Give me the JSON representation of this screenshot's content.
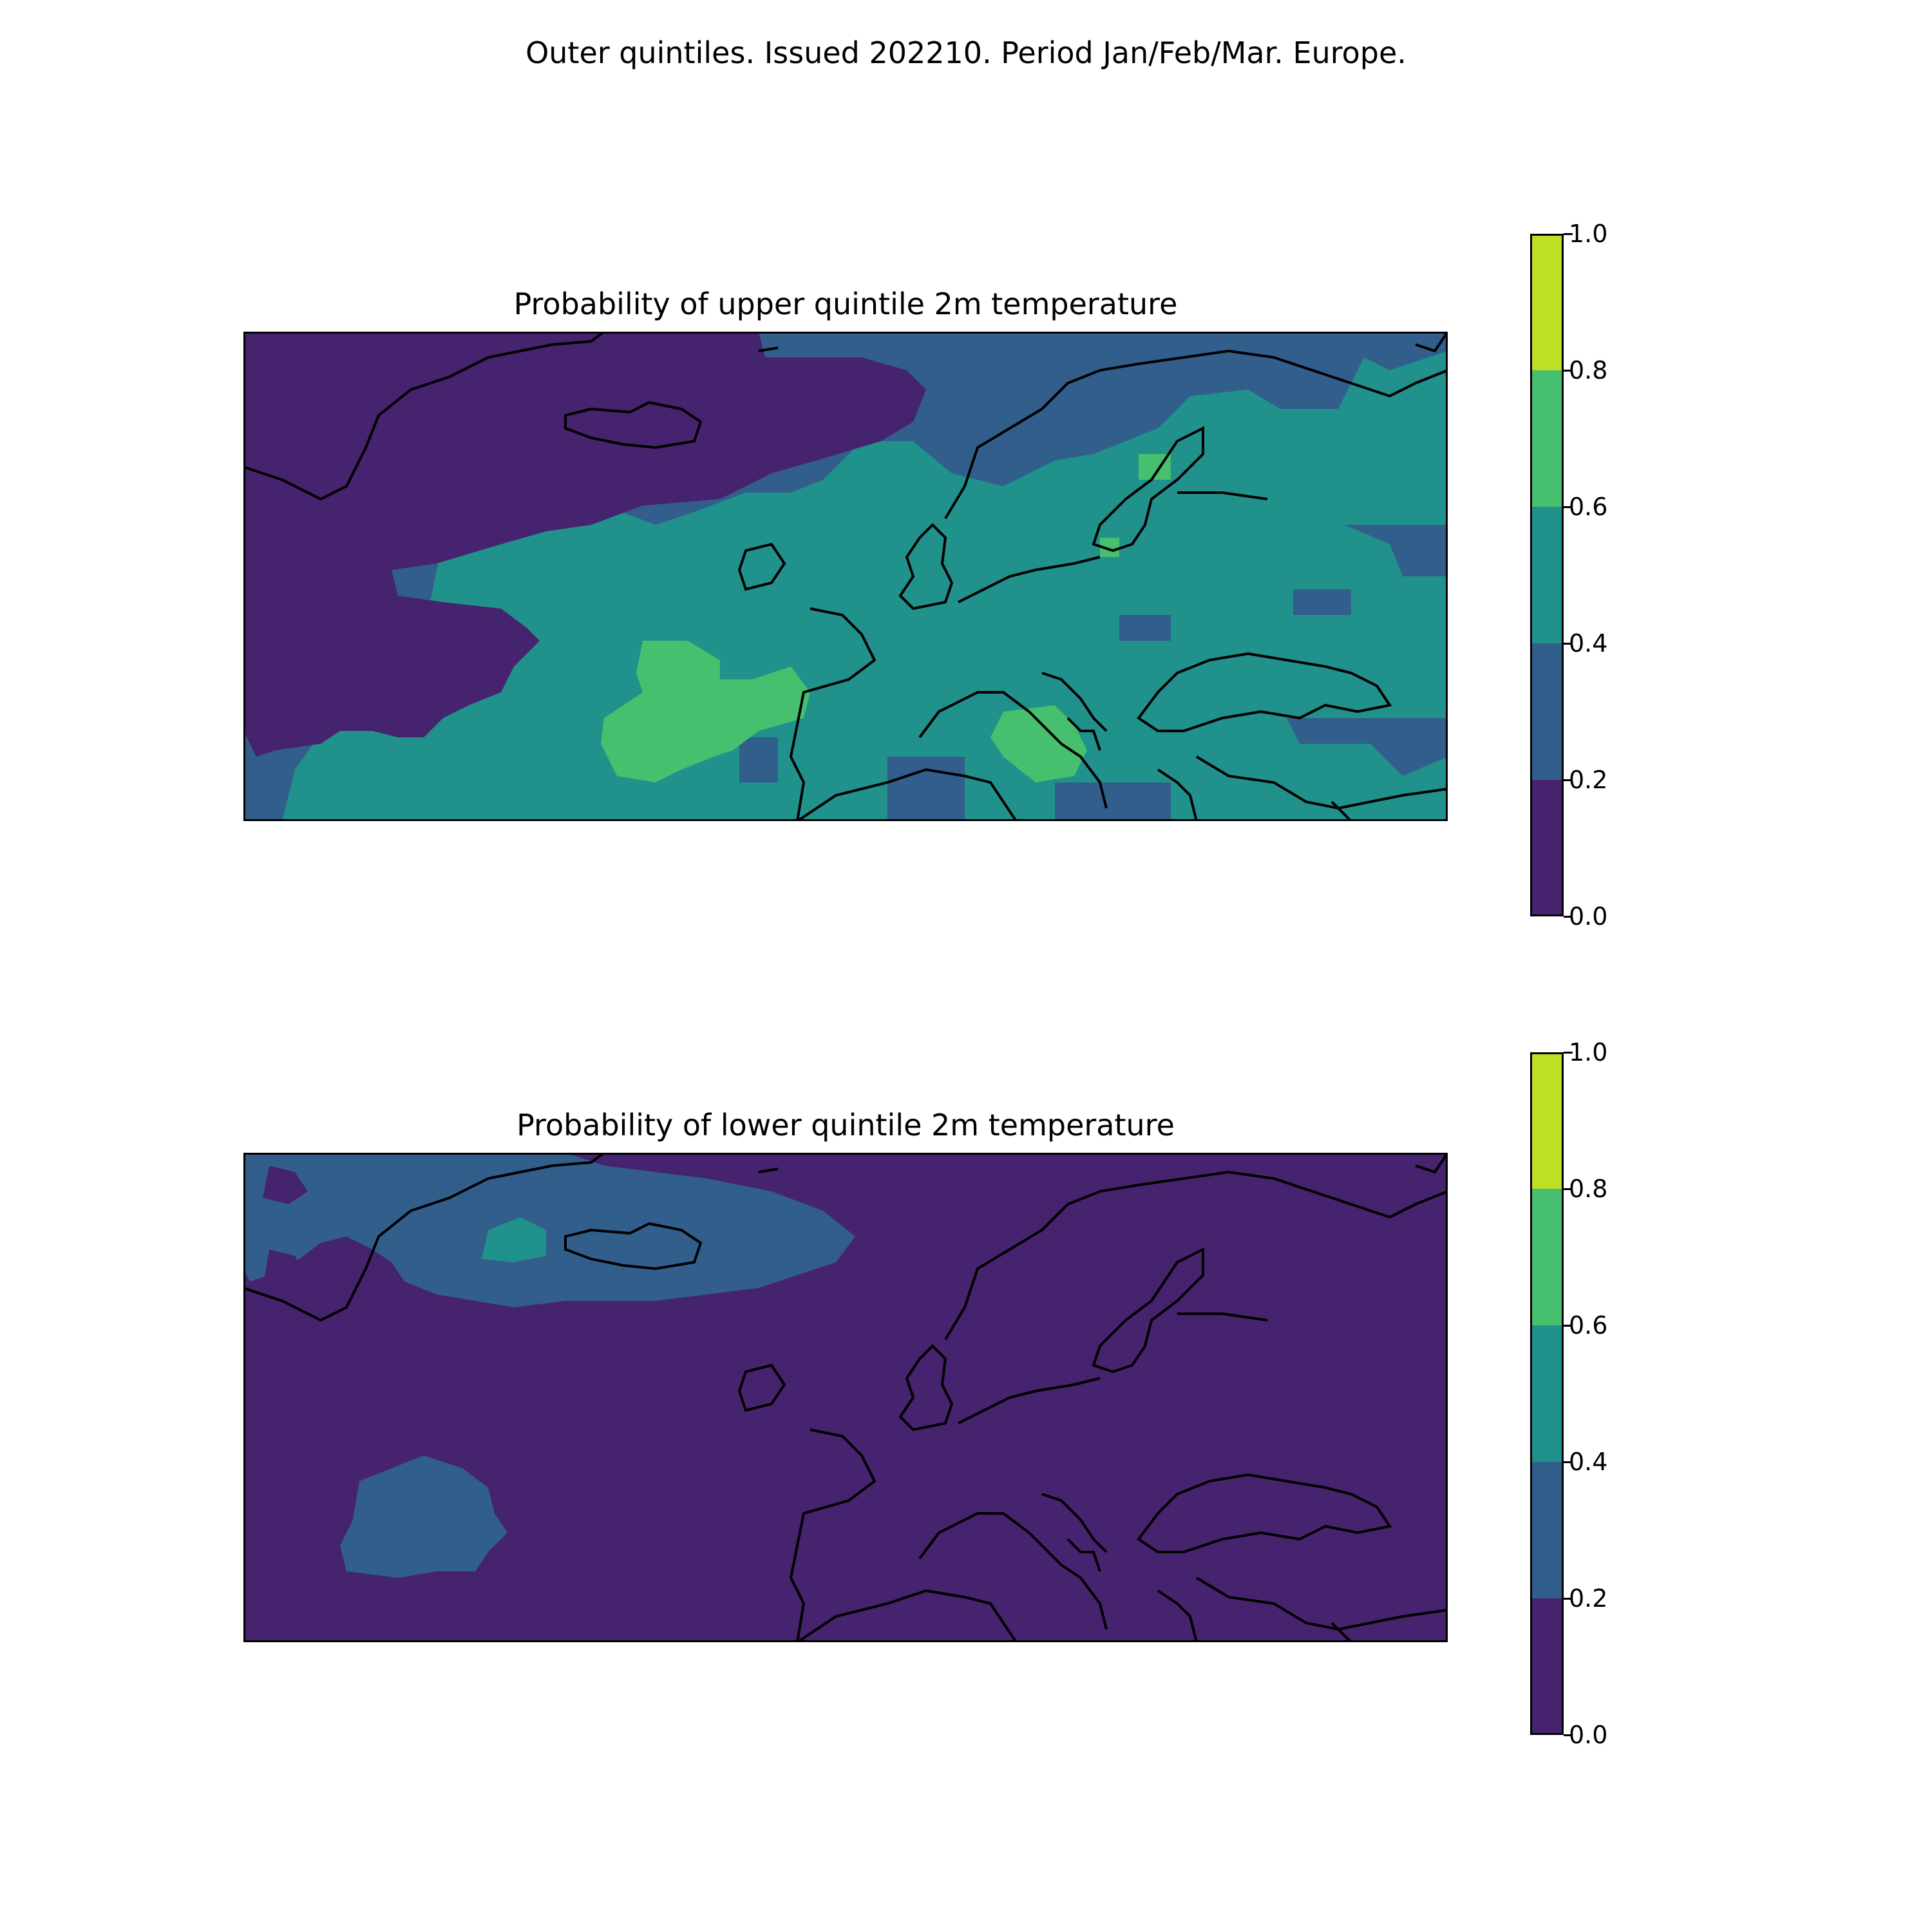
{
  "figure": {
    "suptitle": "Outer quintiles. Issued 202210. Period Jan/Feb/Mar. Europe."
  },
  "panels": [
    {
      "title": "Probability of upper quintile 2m temperature",
      "dominant_level": "0.4-0.6 over continental Europe; 0.6-0.8 over Tyrrhenian Sea / Italy and sub-tropical Atlantic; 0.0-0.2 over Greenland / north-west Atlantic"
    },
    {
      "title": "Probability of lower quintile 2m temperature",
      "dominant_level": "0.0-0.2 almost everywhere; 0.2-0.4 around Greenland / Iceland and a patch in the central Atlantic; 0.4-0.6 patch near Denmark Strait"
    }
  ],
  "colorbar": {
    "ticks": [
      "1.0",
      "0.8",
      "0.6",
      "0.4",
      "0.2",
      "0.0"
    ],
    "levels": [
      0.0,
      0.2,
      0.4,
      0.6,
      0.8,
      1.0
    ],
    "colors": [
      "#46236e",
      "#325e8c",
      "#21918c",
      "#46bf6e",
      "#bddf26"
    ]
  }
}
